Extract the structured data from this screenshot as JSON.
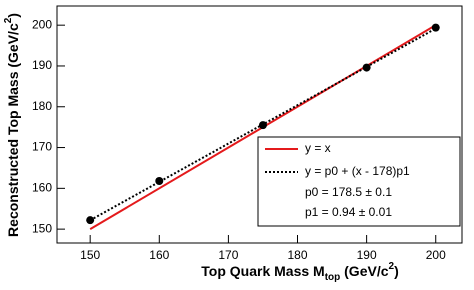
{
  "chart_data": {
    "type": "scatter",
    "x_label": [
      "Top Quark Mass M",
      "top",
      " (GeV/c",
      "2",
      ")"
    ],
    "y_label": [
      "Reconstructed Top Mass (GeV/c",
      "2",
      ")"
    ],
    "points": {
      "x": [
        150,
        160,
        175,
        190,
        200
      ],
      "values": [
        152.2,
        161.8,
        175.5,
        189.6,
        199.4
      ],
      "color": "#000000"
    },
    "series": [
      {
        "name": "y = x",
        "color": "#e41a1c",
        "style": "solid",
        "x": [
          150,
          200
        ],
        "values": [
          150,
          200
        ]
      },
      {
        "name": "y = p0 + (x - 178)p1",
        "color": "#000000",
        "style": "dotted",
        "x": [
          150,
          200
        ],
        "values": [
          152.18,
          199.18
        ]
      }
    ],
    "annotations": [
      "p0 = 178.5 ± 0.1",
      "p1 = 0.94 ± 0.01"
    ],
    "xlim": [
      145.2,
      203.8
    ],
    "ylim": [
      146.6,
      204.7
    ],
    "xticks": [
      150,
      160,
      170,
      180,
      190,
      200
    ],
    "yticks": [
      150,
      160,
      170,
      180,
      190,
      200
    ],
    "grid": false
  }
}
